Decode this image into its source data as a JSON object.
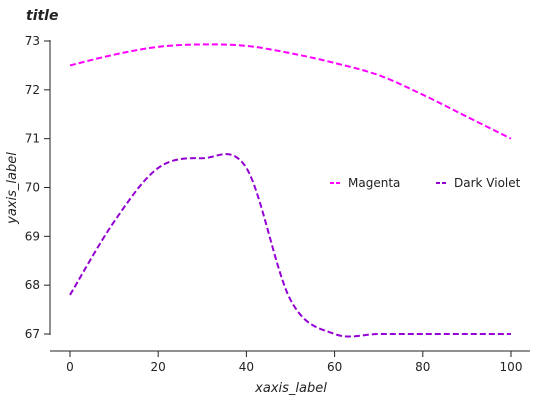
{
  "chart_data": {
    "type": "line",
    "title": "title",
    "xlabel": "xaxis_label",
    "ylabel": "yaxis_label",
    "xlim": [
      0,
      100
    ],
    "ylim": [
      67,
      73
    ],
    "xticks": [
      0,
      20,
      40,
      60,
      80,
      100
    ],
    "yticks": [
      67,
      68,
      69,
      70,
      71,
      72,
      73
    ],
    "legend_position": "center-right",
    "grid": false,
    "series": [
      {
        "name": "Magenta",
        "color": "#ff00ff",
        "x": [
          0,
          10,
          20,
          30,
          40,
          50,
          60,
          70,
          80,
          90,
          100
        ],
        "y": [
          72.5,
          72.72,
          72.88,
          72.93,
          72.9,
          72.75,
          72.55,
          72.3,
          71.9,
          71.45,
          71.0
        ]
      },
      {
        "name": "Dark Violet",
        "color": "#9400d3",
        "x": [
          0,
          10,
          20,
          30,
          40,
          50,
          60,
          70,
          80,
          90,
          100
        ],
        "y": [
          67.8,
          69.3,
          70.4,
          70.6,
          70.4,
          67.7,
          67.0,
          67.0,
          67.0,
          67.0,
          67.0
        ]
      }
    ]
  }
}
